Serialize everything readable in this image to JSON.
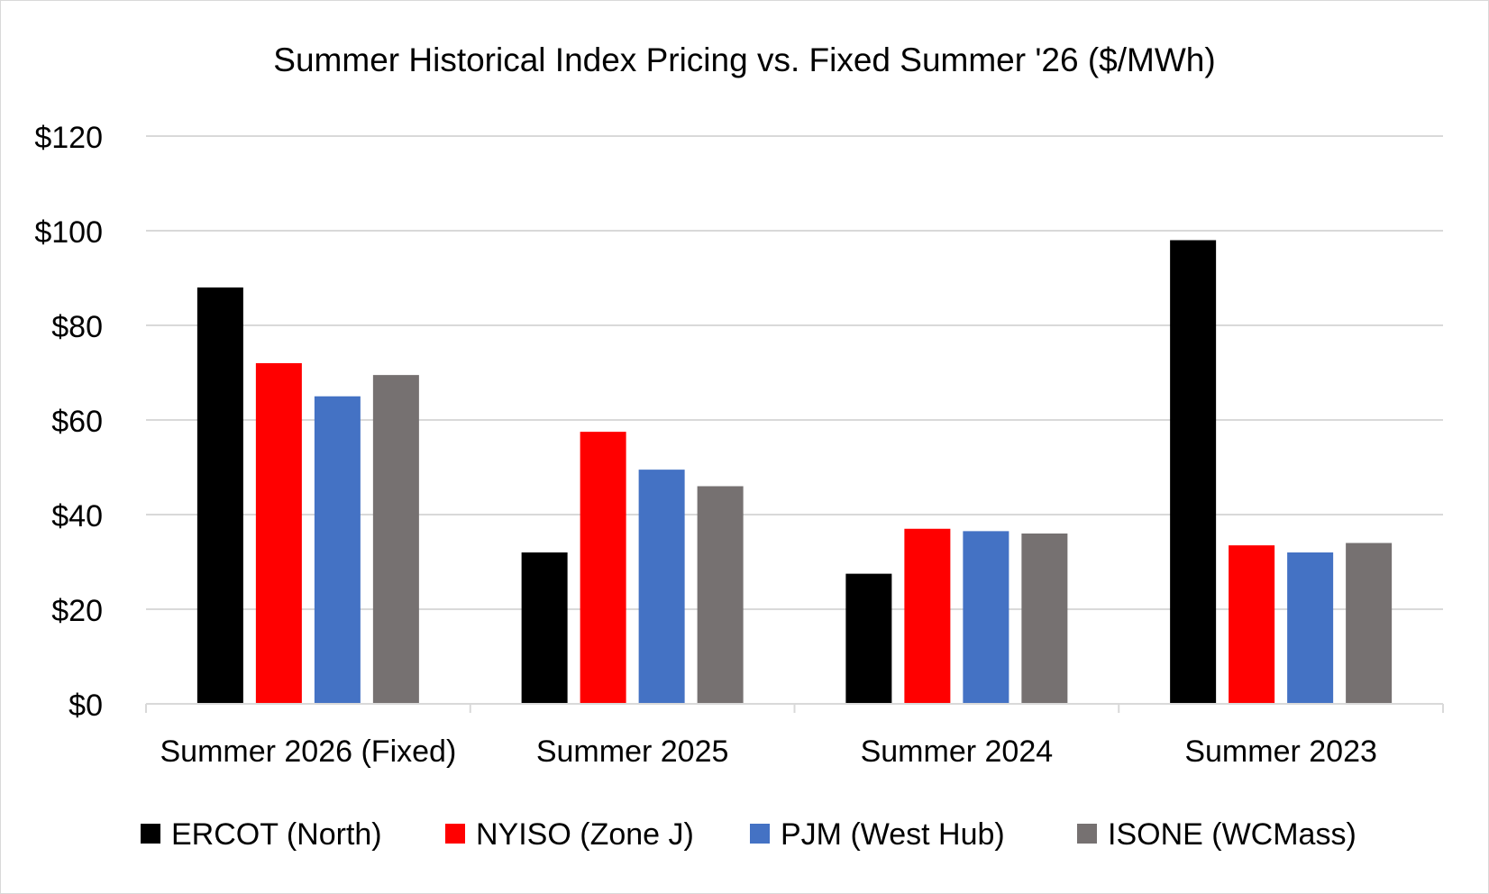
{
  "chart_data": {
    "type": "bar",
    "title": "Summer Historical Index Pricing vs. Fixed Summer '26 ($/MWh)",
    "xlabel": "",
    "ylabel": "",
    "ylim": [
      0,
      120
    ],
    "yticks": [
      "$0",
      "$20",
      "$40",
      "$60",
      "$80",
      "$100",
      "$120"
    ],
    "grid": true,
    "legend_position": "bottom",
    "categories": [
      "Summer 2026 (Fixed)",
      "Summer 2025",
      "Summer 2024",
      "Summer 2023"
    ],
    "series": [
      {
        "name": "ERCOT (North)",
        "color": "#000000",
        "values": [
          88,
          32,
          27.5,
          98
        ]
      },
      {
        "name": "NYISO (Zone J)",
        "color": "#ff0000",
        "values": [
          72,
          57.5,
          37,
          33.5
        ]
      },
      {
        "name": "PJM (West Hub)",
        "color": "#4472c4",
        "values": [
          65,
          49.5,
          36.5,
          32
        ]
      },
      {
        "name": "ISONE (WCMass)",
        "color": "#767171",
        "values": [
          69.5,
          46,
          36,
          34
        ]
      }
    ]
  }
}
